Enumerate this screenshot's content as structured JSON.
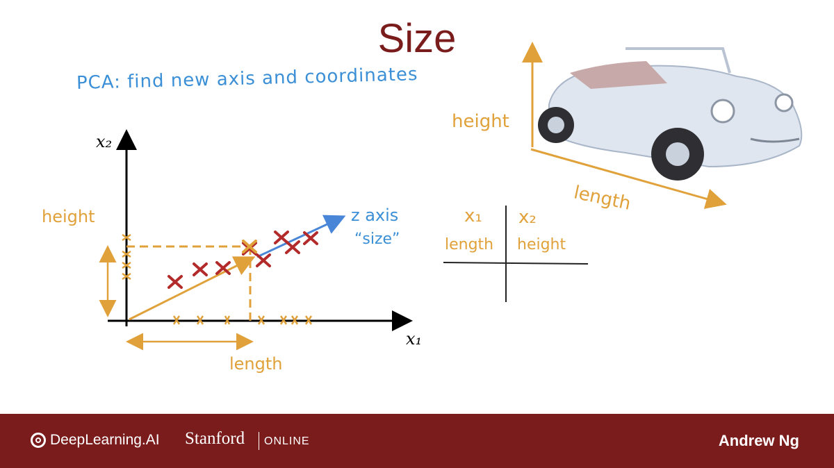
{
  "slide": {
    "title": "Size",
    "note": "PCA: find new axis and coordinates"
  },
  "plot": {
    "x_axis_label": "x₁",
    "y_axis_label": "x₂",
    "height_label": "height",
    "length_label": "length",
    "z_axis_label": "z axis",
    "z_axis_alias": "“size”"
  },
  "car": {
    "height_label": "height",
    "length_label": "length"
  },
  "table": {
    "col1_header": "x₁",
    "col2_header": "x₂",
    "col1_label": "length",
    "col2_label": "height"
  },
  "footer": {
    "brand": "DeepLearning.AI",
    "university": "Stanford",
    "university_suffix": "ONLINE",
    "author": "Andrew Ng"
  },
  "colors": {
    "title": "#7a1c1c",
    "footer_bg": "#7a1c1c",
    "blue_ink": "#3b8fd6",
    "orange_ink": "#e0a13a",
    "red_points": "#b22a2a"
  }
}
